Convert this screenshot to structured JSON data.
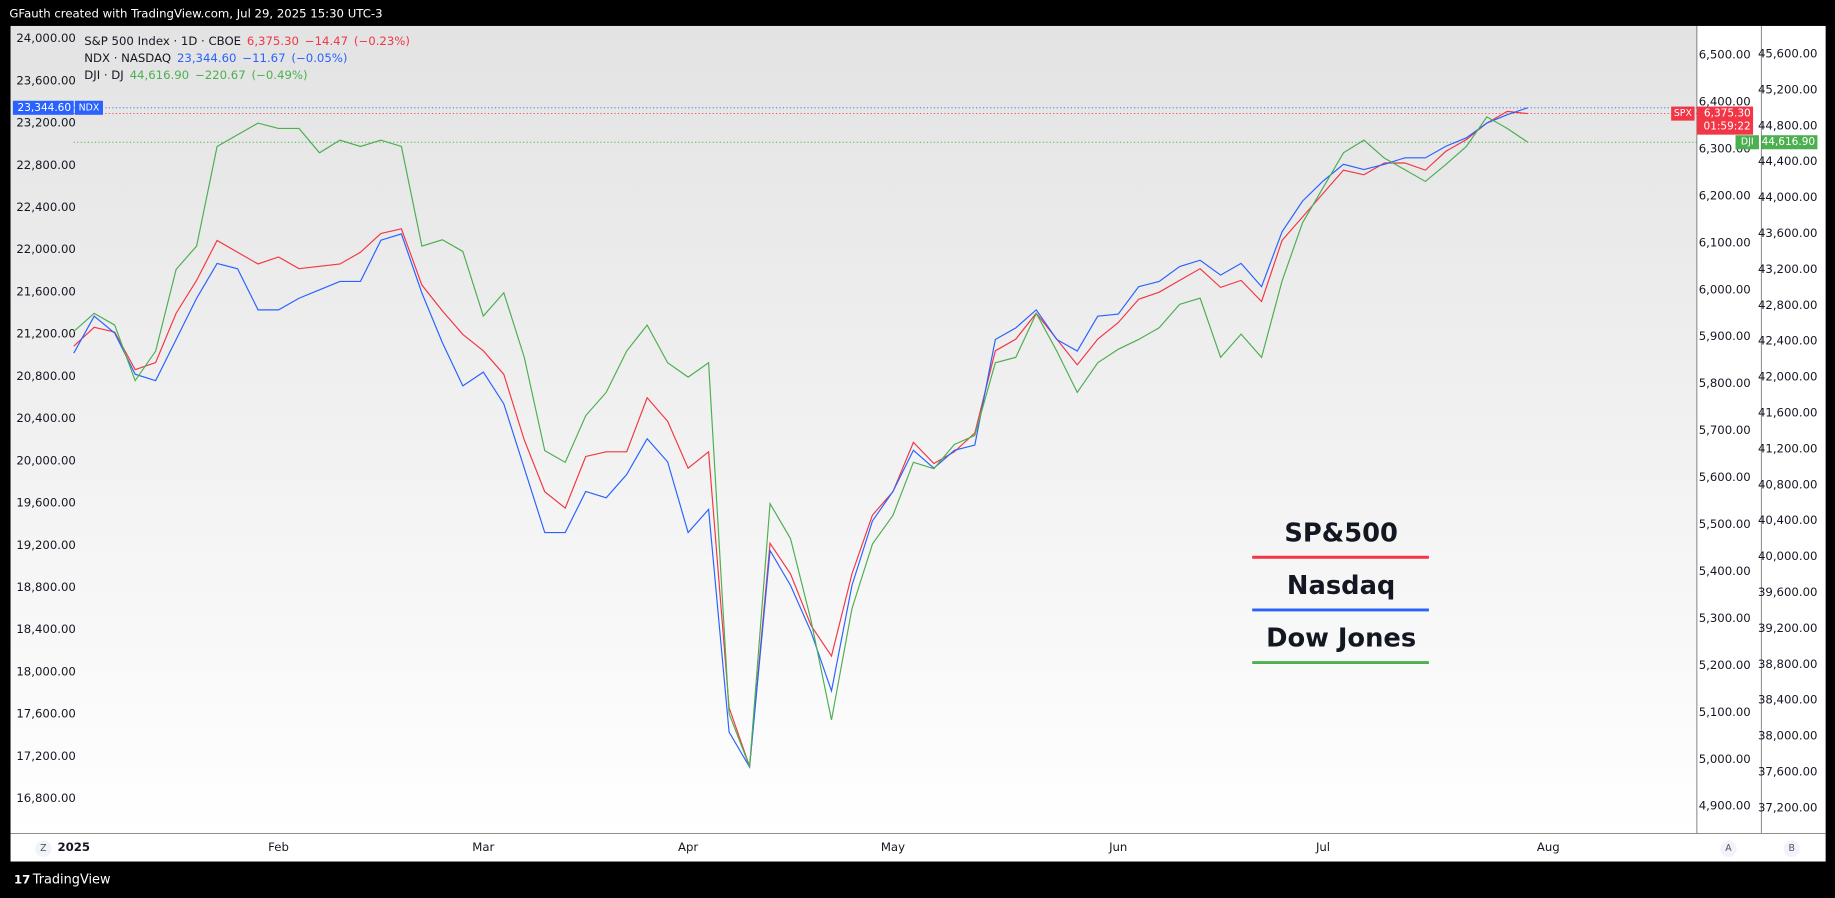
{
  "chart_data": {
    "type": "line",
    "header": "GFauth created with TradingView.com, Jul 29, 2025 15:30 UTC-3",
    "footer": "TradingView",
    "buttons": [
      "Z",
      "A",
      "B"
    ],
    "categories": [
      "2025",
      null,
      null,
      null,
      null,
      null,
      null,
      null,
      null,
      null,
      "Feb",
      null,
      null,
      null,
      null,
      null,
      null,
      null,
      null,
      null,
      "Mar",
      null,
      null,
      null,
      null,
      null,
      null,
      null,
      null,
      null,
      "Apr",
      null,
      null,
      null,
      null,
      null,
      null,
      null,
      null,
      null,
      "May",
      null,
      null,
      null,
      null,
      null,
      null,
      null,
      null,
      null,
      null,
      "Jun",
      null,
      null,
      null,
      null,
      null,
      null,
      null,
      null,
      null,
      "Jul",
      null,
      null,
      null,
      null,
      null,
      null,
      null,
      null,
      null,
      null,
      "Aug"
    ],
    "ylim": [
      16470,
      24120
    ],
    "yticks": [
      {
        "value": 16800,
        "label": "16,800.00"
      },
      {
        "value": 17200,
        "label": "17,200.00"
      },
      {
        "value": 17600,
        "label": "17,600.00"
      },
      {
        "value": 18000,
        "label": "18,000.00"
      },
      {
        "value": 18400,
        "label": "18,400.00"
      },
      {
        "value": 18800,
        "label": "18,800.00"
      },
      {
        "value": 19200,
        "label": "19,200.00"
      },
      {
        "value": 19600,
        "label": "19,600.00"
      },
      {
        "value": 20000,
        "label": "20,000.00"
      },
      {
        "value": 20400,
        "label": "20,400.00"
      },
      {
        "value": 20800,
        "label": "20,800.00"
      },
      {
        "value": 21200,
        "label": "21,200.00"
      },
      {
        "value": 21600,
        "label": "21,600.00"
      },
      {
        "value": 22000,
        "label": "22,000.00"
      },
      {
        "value": 22400,
        "label": "22,400.00"
      },
      {
        "value": 22800,
        "label": "22,800.00"
      },
      {
        "value": 23200,
        "label": "23,200.00"
      },
      {
        "value": 23600,
        "label": "23,600.00"
      },
      {
        "value": 24000,
        "label": "24,000.00"
      }
    ],
    "y2lim": [
      4842,
      6562
    ],
    "y2ticks": [
      {
        "value": 4900,
        "label": "4,900.00"
      },
      {
        "value": 5000,
        "label": "5,000.00"
      },
      {
        "value": 5100,
        "label": "5,100.00"
      },
      {
        "value": 5200,
        "label": "5,200.00"
      },
      {
        "value": 5300,
        "label": "5,300.00"
      },
      {
        "value": 5400,
        "label": "5,400.00"
      },
      {
        "value": 5500,
        "label": "5,500.00"
      },
      {
        "value": 5600,
        "label": "5,600.00"
      },
      {
        "value": 5700,
        "label": "5,700.00"
      },
      {
        "value": 5800,
        "label": "5,800.00"
      },
      {
        "value": 5900,
        "label": "5,900.00"
      },
      {
        "value": 6000,
        "label": "6,000.00"
      },
      {
        "value": 6100,
        "label": "6,100.00"
      },
      {
        "value": 6200,
        "label": "6,200.00"
      },
      {
        "value": 6300,
        "label": "6,300.00"
      },
      {
        "value": 6400,
        "label": "6,400.00"
      },
      {
        "value": 6500,
        "label": "6,500.00"
      }
    ],
    "y3lim": [
      36915,
      45913
    ],
    "y3ticks": [
      {
        "value": 37200,
        "label": "37,200.00"
      },
      {
        "value": 37600,
        "label": "37,600.00"
      },
      {
        "value": 38000,
        "label": "38,000.00"
      },
      {
        "value": 38400,
        "label": "38,400.00"
      },
      {
        "value": 38800,
        "label": "38,800.00"
      },
      {
        "value": 39200,
        "label": "39,200.00"
      },
      {
        "value": 39600,
        "label": "39,600.00"
      },
      {
        "value": 40000,
        "label": "40,000.00"
      },
      {
        "value": 40400,
        "label": "40,400.00"
      },
      {
        "value": 40800,
        "label": "40,800.00"
      },
      {
        "value": 41200,
        "label": "41,200.00"
      },
      {
        "value": 41600,
        "label": "41,600.00"
      },
      {
        "value": 42000,
        "label": "42,000.00"
      },
      {
        "value": 42400,
        "label": "42,400.00"
      },
      {
        "value": 42800,
        "label": "42,800.00"
      },
      {
        "value": 43200,
        "label": "43,200.00"
      },
      {
        "value": 43600,
        "label": "43,600.00"
      },
      {
        "value": 44000,
        "label": "44,000.00"
      },
      {
        "value": 44400,
        "label": "44,400.00"
      },
      {
        "value": 44800,
        "label": "44,800.00"
      },
      {
        "value": 45200,
        "label": "45,200.00"
      },
      {
        "value": 45600,
        "label": "45,600.00"
      }
    ],
    "series": [
      {
        "name": "S&P 500 Index · 1D · CBOE",
        "symbol": "SPX",
        "color": "#f23645",
        "axis": "y2",
        "last_label": "6,375.30",
        "change": "−14.47",
        "change_pct": "(−0.23%)",
        "countdown": "01:59:22",
        "values": [
          5880,
          5920,
          5910,
          5830,
          5845,
          5950,
          6020,
          6105,
          6080,
          6055,
          6070,
          6045,
          6050,
          6055,
          6080,
          6120,
          6130,
          6010,
          5955,
          5905,
          5870,
          5820,
          5680,
          5570,
          5535,
          5645,
          5655,
          5655,
          5770,
          5720,
          5620,
          5655,
          5110,
          4985,
          5460,
          5395,
          5285,
          5220,
          5395,
          5520,
          5570,
          5675,
          5630,
          5655,
          5695,
          5870,
          5895,
          5950,
          5895,
          5840,
          5895,
          5930,
          5980,
          5995,
          6020,
          6045,
          6005,
          6020,
          5975,
          6105,
          6155,
          6205,
          6255,
          6245,
          6270,
          6270,
          6255,
          6295,
          6320,
          6355,
          6380,
          6375.3,
          null
        ]
      },
      {
        "name": "NDX · NASDAQ",
        "symbol": "NDX",
        "color": "#2962ff",
        "axis": "y",
        "last_label": "23,344.60",
        "change": "−11.67",
        "change_pct": "(−0.05%)",
        "values": [
          21020,
          21370,
          21210,
          20820,
          20760,
          21150,
          21540,
          21870,
          21820,
          21430,
          21430,
          21540,
          21620,
          21700,
          21700,
          22090,
          22150,
          21590,
          21120,
          20710,
          20840,
          20540,
          19930,
          19320,
          19320,
          19710,
          19650,
          19870,
          20210,
          19990,
          19320,
          19540,
          17430,
          17100,
          19150,
          18820,
          18380,
          17820,
          18820,
          19430,
          19710,
          20100,
          19930,
          20100,
          20150,
          21150,
          21260,
          21430,
          21150,
          21040,
          21370,
          21390,
          21650,
          21700,
          21840,
          21900,
          21760,
          21870,
          21650,
          22170,
          22460,
          22650,
          22810,
          22760,
          22810,
          22870,
          22870,
          22980,
          23060,
          23200,
          23280,
          23344.6,
          null
        ]
      },
      {
        "name": "DJI · DJ",
        "symbol": "DJI",
        "color": "#4caf50",
        "axis": "y3",
        "last_label": "44,616.90",
        "change": "−220.67",
        "change_pct": "(−0.49%)",
        "values": [
          42510,
          42710,
          42580,
          41960,
          42290,
          43200,
          43460,
          44570,
          44700,
          44830,
          44770,
          44770,
          44500,
          44640,
          44570,
          44640,
          44570,
          43460,
          43530,
          43400,
          42680,
          42940,
          42220,
          41180,
          41050,
          41570,
          41830,
          42290,
          42580,
          42160,
          42000,
          42160,
          38250,
          37660,
          40590,
          40200,
          39290,
          38180,
          39420,
          40140,
          40460,
          41050,
          40980,
          41250,
          41350,
          42160,
          42220,
          42710,
          42290,
          41830,
          42160,
          42310,
          42420,
          42550,
          42810,
          42880,
          42220,
          42480,
          42220,
          43070,
          43720,
          44110,
          44500,
          44640,
          44440,
          44310,
          44180,
          44370,
          44570,
          44900,
          44770,
          44616.9,
          null
        ]
      }
    ],
    "annotation": [
      {
        "text": "SP&500",
        "color": "#f23645"
      },
      {
        "text": "Nasdaq",
        "color": "#2962ff"
      },
      {
        "text": "Dow Jones",
        "color": "#4caf50"
      }
    ]
  }
}
